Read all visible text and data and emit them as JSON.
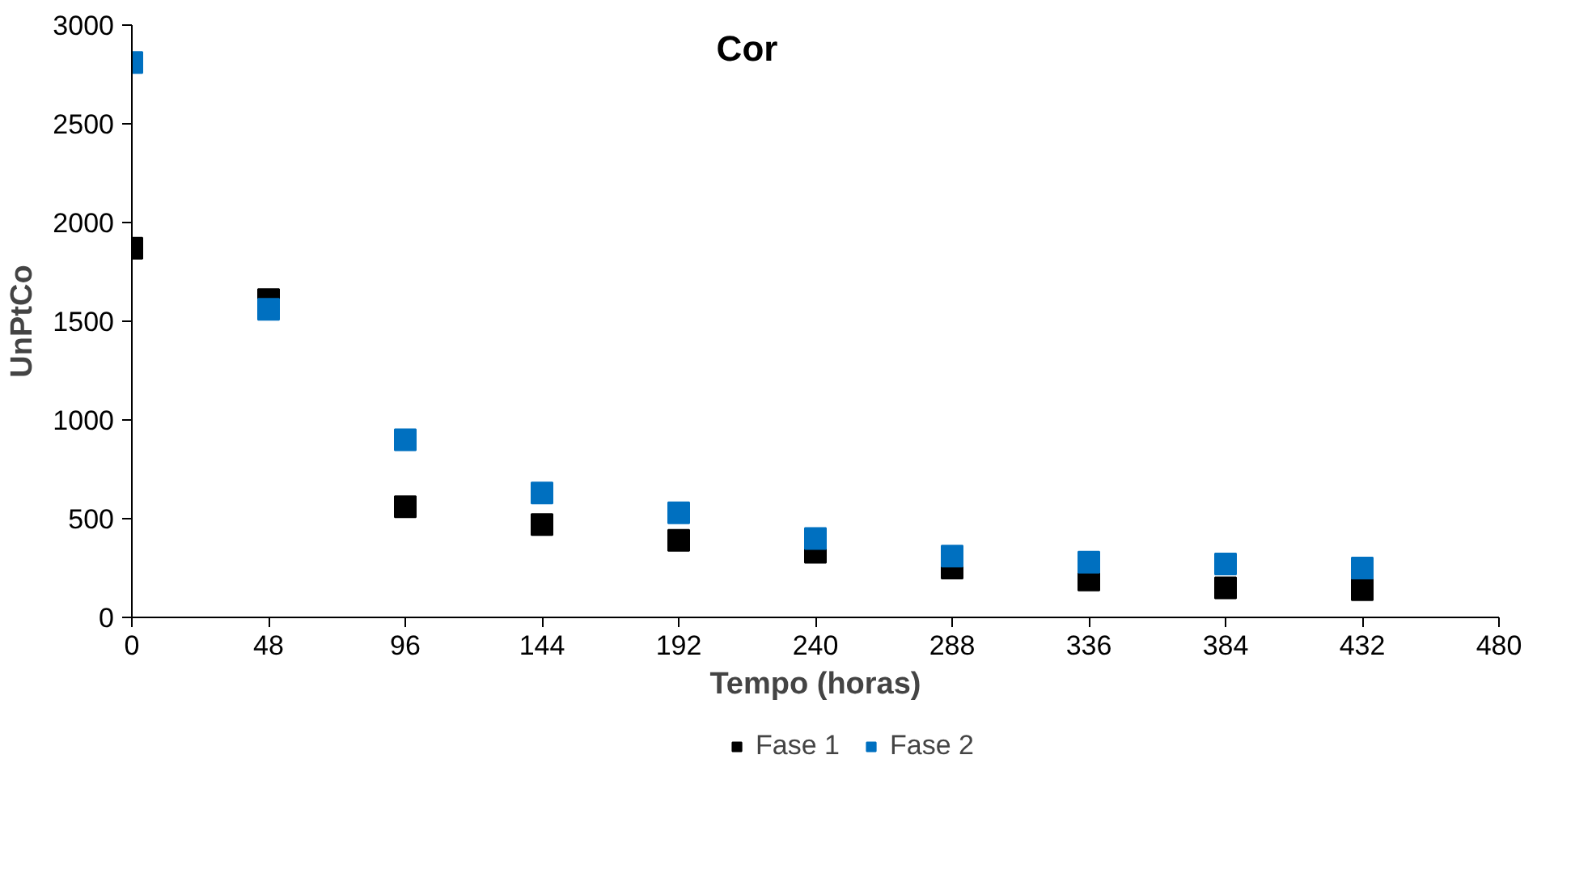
{
  "chart_data": {
    "type": "scatter",
    "title": "Cor",
    "xlabel": "Tempo (horas)",
    "ylabel": "UnPtCo",
    "x": [
      0,
      48,
      96,
      144,
      192,
      240,
      288,
      336,
      384,
      432
    ],
    "series": [
      {
        "name": "Fase 1",
        "color": "#000000",
        "values": [
          1870,
          1610,
          560,
          470,
          390,
          330,
          250,
          190,
          150,
          140
        ]
      },
      {
        "name": "Fase 2",
        "color": "#0070c0",
        "values": [
          2810,
          1560,
          900,
          630,
          530,
          400,
          310,
          280,
          270,
          250
        ]
      }
    ],
    "xlim": [
      0,
      480
    ],
    "xticks": [
      0,
      48,
      96,
      144,
      192,
      240,
      288,
      336,
      384,
      432,
      480
    ],
    "ylim": [
      0,
      3000
    ],
    "yticks": [
      0,
      500,
      1000,
      1500,
      2000,
      2500,
      3000
    ],
    "marker": "square",
    "grid": false,
    "legend": "bottom"
  }
}
